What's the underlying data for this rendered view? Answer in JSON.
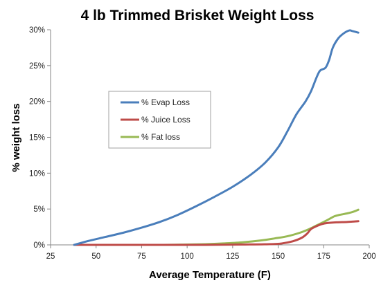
{
  "chart_data": {
    "type": "line",
    "title": "4 lb Trimmed Brisket Weight Loss",
    "xlabel": "Average Temperature (F)",
    "ylabel": "% weight loss",
    "xlim": [
      25,
      200
    ],
    "ylim": [
      0,
      30
    ],
    "x_ticks": [
      "25",
      "50",
      "75",
      "100",
      "125",
      "150",
      "175",
      "200"
    ],
    "y_ticks": [
      "0%",
      "5%",
      "10%",
      "15%",
      "20%",
      "25%",
      "30%"
    ],
    "grid": false,
    "legend_position": "center-left",
    "series": [
      {
        "name": "% Evap Loss",
        "color": "#4a7ebb",
        "points": [
          [
            38,
            0.0
          ],
          [
            45,
            0.5
          ],
          [
            55,
            1.1
          ],
          [
            65,
            1.7
          ],
          [
            75,
            2.4
          ],
          [
            85,
            3.2
          ],
          [
            95,
            4.2
          ],
          [
            105,
            5.4
          ],
          [
            115,
            6.7
          ],
          [
            125,
            8.1
          ],
          [
            135,
            9.8
          ],
          [
            143,
            11.5
          ],
          [
            150,
            13.6
          ],
          [
            155,
            15.8
          ],
          [
            160,
            18.2
          ],
          [
            165,
            20.0
          ],
          [
            168,
            21.4
          ],
          [
            171,
            23.3
          ],
          [
            173,
            24.3
          ],
          [
            176,
            24.7
          ],
          [
            178,
            25.8
          ],
          [
            180,
            27.5
          ],
          [
            183,
            28.8
          ],
          [
            186,
            29.5
          ],
          [
            189,
            29.9
          ],
          [
            191,
            29.8
          ],
          [
            194,
            29.6
          ]
        ]
      },
      {
        "name": "% Juice Loss",
        "color": "#be4b48",
        "points": [
          [
            38,
            0.0
          ],
          [
            80,
            0.0
          ],
          [
            110,
            0.0
          ],
          [
            130,
            0.05
          ],
          [
            145,
            0.1
          ],
          [
            152,
            0.2
          ],
          [
            158,
            0.5
          ],
          [
            163,
            1.0
          ],
          [
            166,
            1.6
          ],
          [
            168,
            2.2
          ],
          [
            171,
            2.6
          ],
          [
            174,
            2.9
          ],
          [
            177,
            3.05
          ],
          [
            182,
            3.15
          ],
          [
            188,
            3.2
          ],
          [
            194,
            3.3
          ]
        ]
      },
      {
        "name": "% Fat loss",
        "color": "#98b954",
        "points": [
          [
            38,
            0.0
          ],
          [
            80,
            0.0
          ],
          [
            100,
            0.05
          ],
          [
            110,
            0.1
          ],
          [
            120,
            0.2
          ],
          [
            130,
            0.35
          ],
          [
            140,
            0.6
          ],
          [
            148,
            0.9
          ],
          [
            155,
            1.2
          ],
          [
            162,
            1.7
          ],
          [
            167,
            2.2
          ],
          [
            171,
            2.7
          ],
          [
            175,
            3.2
          ],
          [
            178,
            3.6
          ],
          [
            181,
            4.0
          ],
          [
            184,
            4.2
          ],
          [
            188,
            4.4
          ],
          [
            191,
            4.6
          ],
          [
            194,
            4.9
          ]
        ]
      }
    ]
  }
}
